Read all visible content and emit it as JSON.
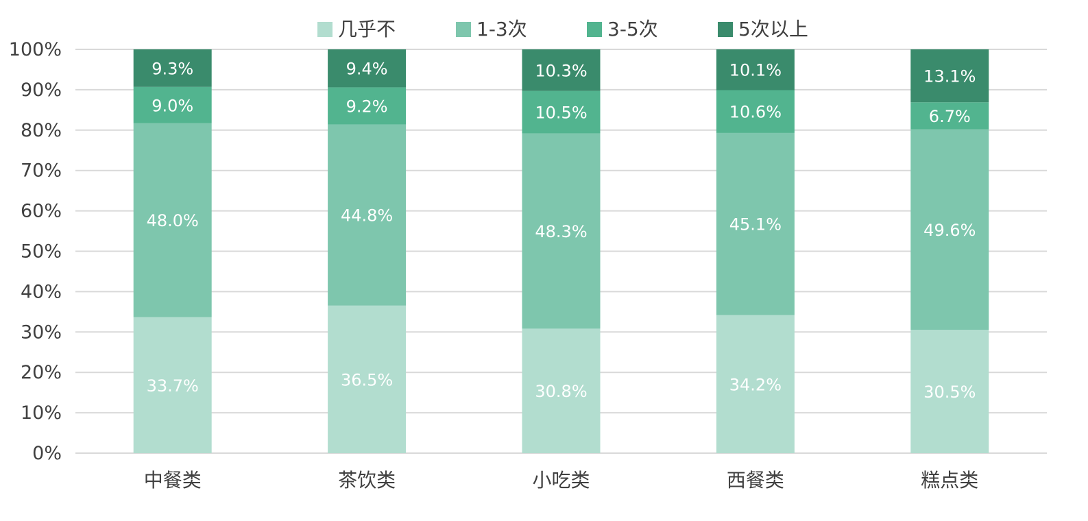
{
  "chart_data": {
    "type": "bar",
    "stacked": true,
    "percent_stacked": true,
    "categories": [
      "中餐类",
      "茶饮类",
      "小吃类",
      "西餐类",
      "糕点类"
    ],
    "series": [
      {
        "name": "几乎不",
        "color": "#b2ddcf",
        "values": [
          33.7,
          36.5,
          30.8,
          34.2,
          30.5
        ],
        "labels": [
          "33.7%",
          "36.5%",
          "30.8%",
          "34.2%",
          "30.5%"
        ]
      },
      {
        "name": "1-3次",
        "color": "#7ec6ad",
        "values": [
          48.0,
          44.8,
          48.3,
          45.1,
          49.6
        ],
        "labels": [
          "48.0%",
          "44.8%",
          "48.3%",
          "45.1%",
          "49.6%"
        ]
      },
      {
        "name": "3-5次",
        "color": "#52b48f",
        "values": [
          9.0,
          9.2,
          10.5,
          10.6,
          6.7
        ],
        "labels": [
          "9.0%",
          "9.2%",
          "10.5%",
          "10.6%",
          "6.7%"
        ]
      },
      {
        "name": "5次以上",
        "color": "#3a8b6c",
        "values": [
          9.3,
          9.4,
          10.3,
          10.1,
          13.1
        ],
        "labels": [
          "9.3%",
          "9.4%",
          "10.3%",
          "10.1%",
          "13.1%"
        ]
      }
    ],
    "ylim": [
      0,
      100
    ],
    "yticks": [
      "0%",
      "10%",
      "20%",
      "30%",
      "40%",
      "50%",
      "60%",
      "70%",
      "80%",
      "90%",
      "100%"
    ],
    "grid": true,
    "legend": "top"
  }
}
